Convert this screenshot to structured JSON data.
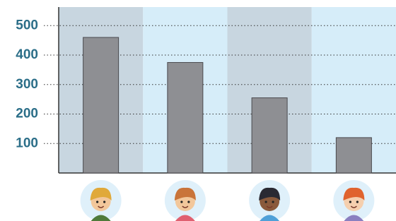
{
  "chart_data": {
    "type": "bar",
    "categories": [
      null,
      null,
      null,
      null
    ],
    "values": [
      460,
      375,
      255,
      120
    ],
    "color": "#8e8f93",
    "band_colors": [
      "#c8d6e0",
      "#d6edf9"
    ],
    "ylim": [
      0,
      563
    ],
    "yticks": [
      100,
      200,
      300,
      400,
      500
    ],
    "grid": true
  }
}
